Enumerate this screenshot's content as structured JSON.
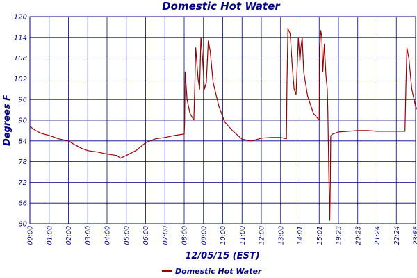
{
  "chart_data": {
    "type": "line",
    "title": "Domestic Hot Water",
    "xlabel": "12/05/15 (EST)",
    "ylabel": "Degrees F",
    "ylim": [
      60,
      120
    ],
    "yticks": [
      "60",
      "66",
      "72",
      "78",
      "84",
      "90",
      "96",
      "102",
      "108",
      "114",
      "120"
    ],
    "xticks": [
      "00:00",
      "01:00",
      "02:00",
      "03:00",
      "04:00",
      "05:00",
      "06:00",
      "07:00",
      "08:00",
      "09:00",
      "10:00",
      "11:00",
      "12:00",
      "13:00",
      "14:01",
      "15:01",
      "19:23",
      "20:23",
      "21:24",
      "22:24",
      "23:25",
      "23:56"
    ],
    "grid": true,
    "legend": "bottom",
    "colors": {
      "series": "#990000",
      "grid": "#000080",
      "text": "#000080"
    },
    "series": [
      {
        "name": "Domestic Hot Water",
        "values": [
          [
            0.0,
            88.2
          ],
          [
            0.3,
            87.0
          ],
          [
            0.6,
            86.2
          ],
          [
            1.0,
            85.6
          ],
          [
            1.5,
            84.6
          ],
          [
            2.0,
            84.0
          ],
          [
            2.3,
            83.0
          ],
          [
            2.7,
            81.8
          ],
          [
            3.0,
            81.2
          ],
          [
            3.5,
            80.8
          ],
          [
            4.0,
            80.2
          ],
          [
            4.5,
            79.8
          ],
          [
            4.7,
            79.0
          ],
          [
            5.0,
            79.8
          ],
          [
            5.5,
            81.2
          ],
          [
            6.0,
            83.5
          ],
          [
            6.5,
            84.6
          ],
          [
            7.0,
            85.0
          ],
          [
            7.5,
            85.6
          ],
          [
            8.0,
            86.0
          ],
          [
            8.02,
            89.0
          ],
          [
            8.05,
            104.0
          ],
          [
            8.15,
            96.0
          ],
          [
            8.3,
            92.0
          ],
          [
            8.5,
            90.0
          ],
          [
            8.55,
            100.0
          ],
          [
            8.6,
            111.0
          ],
          [
            8.72,
            102.0
          ],
          [
            8.8,
            99.0
          ],
          [
            8.87,
            114.0
          ],
          [
            8.95,
            108.0
          ],
          [
            9.05,
            99.0
          ],
          [
            9.15,
            101.0
          ],
          [
            9.25,
            113.0
          ],
          [
            9.35,
            110.0
          ],
          [
            9.5,
            101.0
          ],
          [
            9.8,
            94.0
          ],
          [
            10.1,
            89.5
          ],
          [
            10.5,
            87.0
          ],
          [
            11.0,
            84.5
          ],
          [
            11.5,
            84.0
          ],
          [
            12.0,
            84.8
          ],
          [
            12.5,
            85.0
          ],
          [
            13.0,
            85.0
          ],
          [
            13.3,
            84.6
          ],
          [
            13.33,
            100.0
          ],
          [
            13.38,
            116.5
          ],
          [
            13.5,
            115.0
          ],
          [
            13.6,
            106.0
          ],
          [
            13.7,
            99.0
          ],
          [
            13.8,
            97.5
          ],
          [
            13.92,
            114.0
          ],
          [
            14.0,
            107.0
          ],
          [
            14.05,
            111.0
          ],
          [
            14.12,
            114.0
          ],
          [
            14.2,
            104.0
          ],
          [
            14.4,
            97.0
          ],
          [
            14.7,
            92.0
          ],
          [
            15.0,
            90.0
          ],
          [
            15.03,
            111.0
          ],
          [
            15.08,
            116.0
          ],
          [
            15.14,
            114.0
          ],
          [
            15.19,
            104.0
          ],
          [
            15.27,
            112.0
          ],
          [
            15.35,
            103.0
          ],
          [
            15.42,
            99.0
          ],
          [
            15.45,
            93.0
          ],
          [
            15.5,
            75.0
          ],
          [
            15.55,
            61.0
          ],
          [
            15.58,
            72.0
          ],
          [
            15.6,
            85.5
          ],
          [
            15.7,
            86.0
          ],
          [
            16.0,
            86.6
          ],
          [
            16.5,
            86.8
          ],
          [
            17.0,
            87.0
          ],
          [
            17.5,
            87.0
          ],
          [
            18.0,
            86.8
          ],
          [
            18.5,
            86.8
          ],
          [
            19.0,
            86.8
          ],
          [
            19.45,
            86.8
          ],
          [
            19.5,
            100.0
          ],
          [
            19.55,
            111.0
          ],
          [
            19.65,
            108.0
          ],
          [
            19.8,
            99.0
          ],
          [
            20.0,
            94.0
          ],
          [
            20.3,
            91.0
          ],
          [
            20.6,
            89.0
          ],
          [
            20.85,
            87.5
          ],
          [
            20.92,
            92.0
          ],
          [
            20.95,
            89.0
          ],
          [
            21.0,
            87.0
          ]
        ]
      }
    ]
  }
}
